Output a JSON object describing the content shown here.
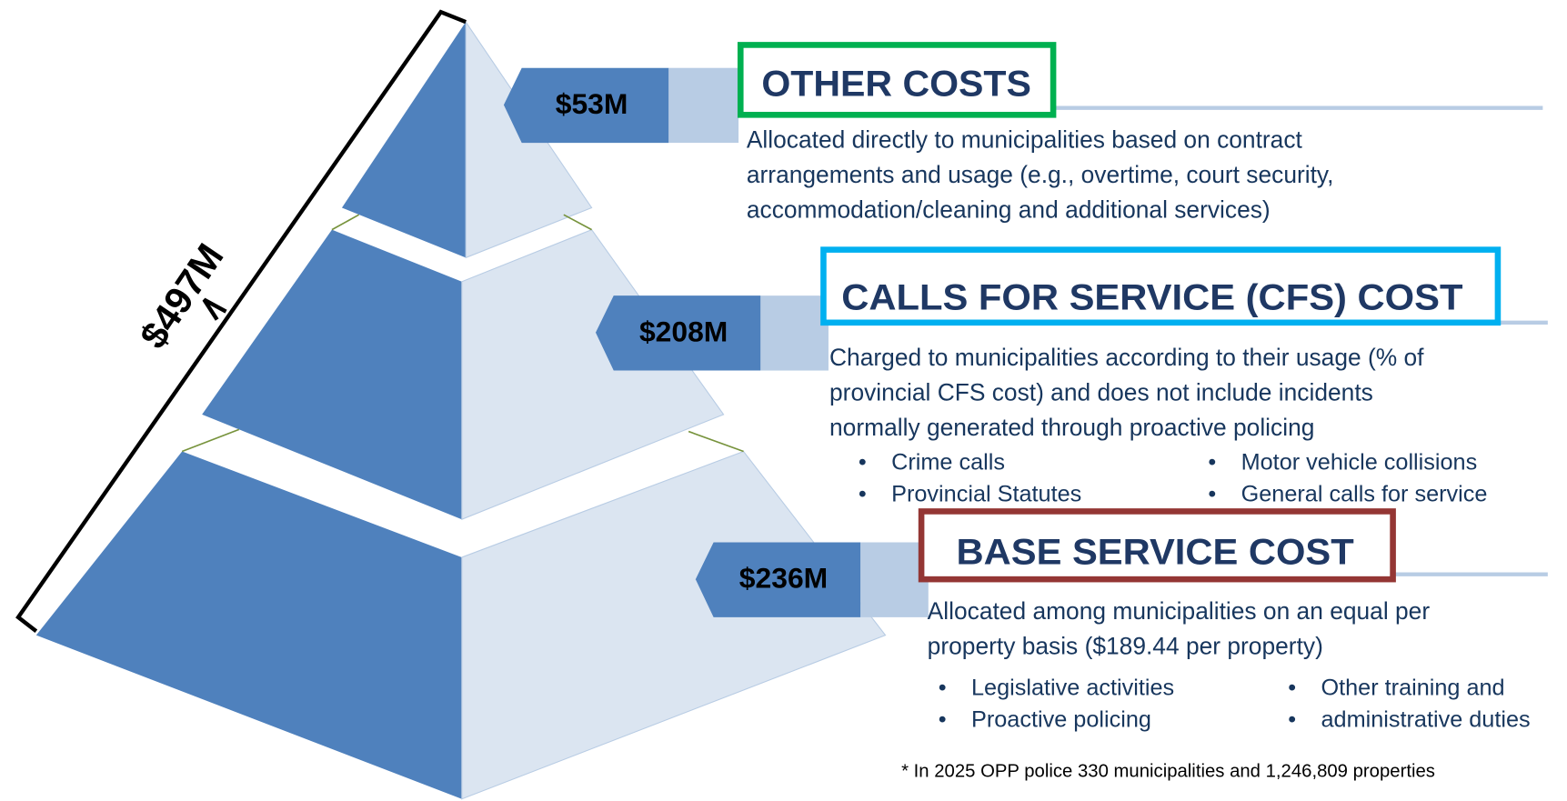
{
  "total": "$497M",
  "tiers": [
    {
      "amount": "$53M",
      "title": "OTHER COSTS",
      "description": [
        "Allocated directly to municipalities based on contract",
        "arrangements and usage (e.g., overtime, court security,",
        "accommodation/cleaning and additional services)"
      ],
      "bullets": []
    },
    {
      "amount": "$208M",
      "title": "CALLS FOR SERVICE (CFS) COST",
      "description": [
        "Charged to municipalities according to their usage (% of",
        "provincial CFS cost) and does not include incidents",
        "normally generated through proactive policing"
      ],
      "bullets": [
        "Crime calls",
        "Provincial Statutes",
        "Motor vehicle collisions",
        "General calls for service"
      ]
    },
    {
      "amount": "$236M",
      "title": "BASE SERVICE COST",
      "description": [
        "Allocated among municipalities on an equal per",
        "property basis ($189.44 per property)"
      ],
      "bullets": [
        "Legislative activities",
        "Proactive policing",
        "Other training and",
        "administrative duties"
      ]
    }
  ],
  "footnote": "* In 2025 OPP police 330 municipalities and 1,246,809 properties"
}
